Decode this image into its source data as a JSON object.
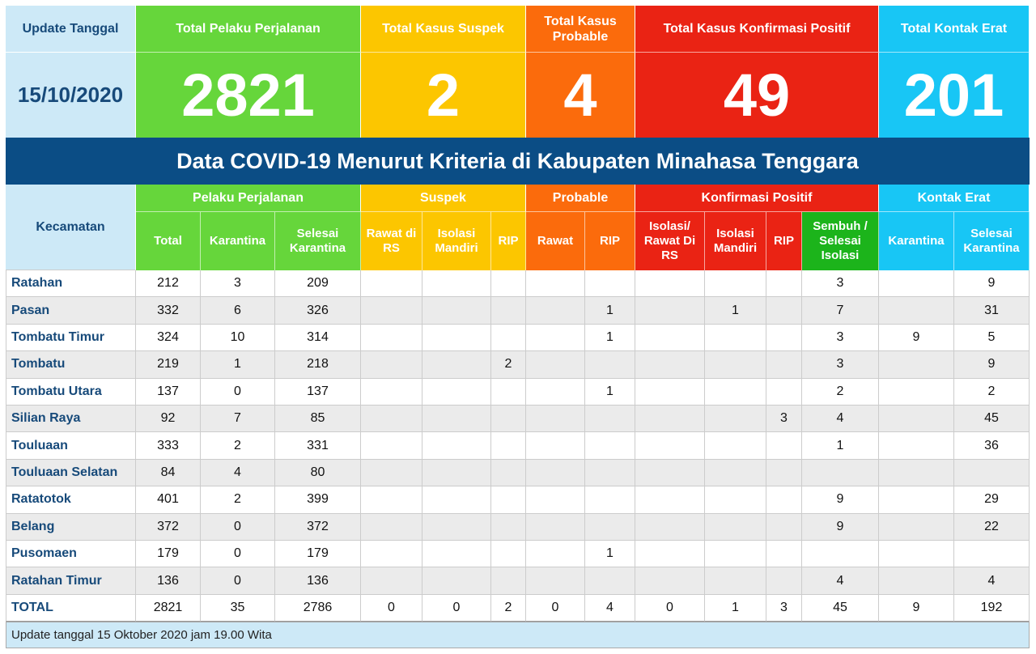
{
  "summary": {
    "update_label": "Update Tanggal",
    "date": "15/10/2020",
    "cards": [
      {
        "label": "Total Pelaku Perjalanan",
        "value": 2821
      },
      {
        "label": "Total Kasus Suspek",
        "value": 2
      },
      {
        "label": "Total Kasus Probable",
        "value": 4
      },
      {
        "label": "Total Kasus Konfirmasi Positif",
        "value": 49
      },
      {
        "label": "Total Kontak Erat",
        "value": 201
      }
    ]
  },
  "banner": "Data COVID-19 Menurut Kriteria di Kabupaten Minahasa Tenggara",
  "table": {
    "corner": "Kecamatan",
    "groups": [
      {
        "label": "Pelaku Perjalanan",
        "columns": [
          "Total",
          "Karantina",
          "Selesai Karantina"
        ]
      },
      {
        "label": "Suspek",
        "columns": [
          "Rawat di RS",
          "Isolasi Mandiri",
          "RIP"
        ]
      },
      {
        "label": "Probable",
        "columns": [
          "Rawat",
          "RIP"
        ]
      },
      {
        "label": "Konfirmasi Positif",
        "columns": [
          "Isolasi/ Rawat Di RS",
          "Isolasi Mandiri",
          "RIP",
          "Sembuh / Selesai Isolasi"
        ]
      },
      {
        "label": "Kontak Erat",
        "columns": [
          "Karantina",
          "Selesai Karantina"
        ]
      }
    ],
    "rows": [
      {
        "name": "Ratahan",
        "values": [
          212,
          3,
          209,
          null,
          null,
          null,
          null,
          null,
          null,
          null,
          null,
          3,
          null,
          9
        ]
      },
      {
        "name": "Pasan",
        "values": [
          332,
          6,
          326,
          null,
          null,
          null,
          null,
          1,
          null,
          1,
          null,
          7,
          null,
          31
        ]
      },
      {
        "name": "Tombatu Timur",
        "values": [
          324,
          10,
          314,
          null,
          null,
          null,
          null,
          1,
          null,
          null,
          null,
          3,
          9,
          5
        ]
      },
      {
        "name": "Tombatu",
        "values": [
          219,
          1,
          218,
          null,
          null,
          2,
          null,
          null,
          null,
          null,
          null,
          3,
          null,
          9
        ]
      },
      {
        "name": "Tombatu Utara",
        "values": [
          137,
          0,
          137,
          null,
          null,
          null,
          null,
          1,
          null,
          null,
          null,
          2,
          null,
          2
        ]
      },
      {
        "name": "Silian Raya",
        "values": [
          92,
          7,
          85,
          null,
          null,
          null,
          null,
          null,
          null,
          null,
          3,
          4,
          null,
          45
        ]
      },
      {
        "name": "Touluaan",
        "values": [
          333,
          2,
          331,
          null,
          null,
          null,
          null,
          null,
          null,
          null,
          null,
          1,
          null,
          36
        ]
      },
      {
        "name": "Touluaan Selatan",
        "values": [
          84,
          4,
          80,
          null,
          null,
          null,
          null,
          null,
          null,
          null,
          null,
          null,
          null,
          null
        ]
      },
      {
        "name": "Ratatotok",
        "values": [
          401,
          2,
          399,
          null,
          null,
          null,
          null,
          null,
          null,
          null,
          null,
          9,
          null,
          29
        ]
      },
      {
        "name": "Belang",
        "values": [
          372,
          0,
          372,
          null,
          null,
          null,
          null,
          null,
          null,
          null,
          null,
          9,
          null,
          22
        ]
      },
      {
        "name": "Pusomaen",
        "values": [
          179,
          0,
          179,
          null,
          null,
          null,
          null,
          1,
          null,
          null,
          null,
          null,
          null,
          null
        ]
      },
      {
        "name": "Ratahan Timur",
        "values": [
          136,
          0,
          136,
          null,
          null,
          null,
          null,
          null,
          null,
          null,
          null,
          4,
          null,
          4
        ]
      },
      {
        "name": "TOTAL",
        "values": [
          2821,
          35,
          2786,
          0,
          0,
          2,
          0,
          4,
          0,
          1,
          3,
          45,
          9,
          192
        ]
      }
    ]
  },
  "footer": "Update tanggal 15 Oktober 2020 jam 19.00 Wita"
}
